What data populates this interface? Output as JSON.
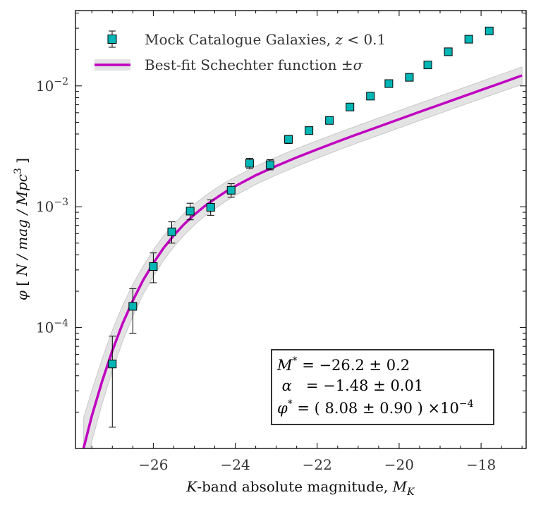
{
  "chart_data": {
    "type": "scatter",
    "xlabel": "K-band absolute magnitude, M_K",
    "ylabel": "φ [ N / mag / Mpc³ ]",
    "xlim": [
      -27.9,
      -16.9
    ],
    "ylim": [
      1e-05,
      0.042
    ],
    "yscale": "log",
    "grid": false,
    "legend_position": "top-left",
    "x_ticks": [
      -26,
      -24,
      -22,
      -20,
      -18
    ],
    "x_tick_labels": [
      "−26",
      "−24",
      "−22",
      "−20",
      "−18"
    ],
    "y_ticks": [
      0.0001,
      0.001,
      0.01
    ],
    "y_tick_labels": [
      {
        "base": "10",
        "exp": "−4"
      },
      {
        "base": "10",
        "exp": "−3"
      },
      {
        "base": "10",
        "exp": "−2"
      }
    ],
    "series": [
      {
        "name": "Mock Catalogue Galaxies, z < 0.1",
        "kind": "errorbar-points",
        "color": "#00b5b5",
        "edge_color": "#000000",
        "x": [
          -27.0,
          -26.5,
          -26.0,
          -25.55,
          -25.1,
          -24.6,
          -24.1,
          -23.65,
          -23.15,
          -22.7,
          -22.2,
          -21.7,
          -21.2,
          -20.7,
          -20.25,
          -19.75,
          -19.3,
          -18.8,
          -18.3,
          -17.8
        ],
        "y": [
          5e-05,
          0.00015,
          0.00032,
          0.00062,
          0.00092,
          0.00099,
          0.00137,
          0.00229,
          0.00223,
          0.00361,
          0.00427,
          0.00518,
          0.00669,
          0.00823,
          0.01045,
          0.01178,
          0.01491,
          0.01916,
          0.02434,
          0.0285
        ],
        "y_err_low": [
          3.5e-05,
          6e-05,
          8.5e-05,
          0.00012,
          0.00014,
          0.00014,
          0.00017,
          0.00022,
          0.00021,
          0.00027,
          0.00029,
          0.00033,
          0.00038,
          0.00042,
          0.00047,
          0.0005,
          0.00056,
          0.00064,
          0.00072,
          0.00079
        ],
        "y_err_high": [
          3.5e-05,
          6e-05,
          9.5e-05,
          0.00013,
          0.00015,
          0.00015,
          0.00018,
          0.00023,
          0.00022,
          0.00028,
          0.0003,
          0.00034,
          0.00039,
          0.00043,
          0.00048,
          0.00051,
          0.00057,
          0.00065,
          0.00073,
          0.0008
        ]
      },
      {
        "name": "Best-fit Schechter function ±σ",
        "kind": "line-with-band",
        "color": "#c000c0",
        "band_color": "#e3e3e3",
        "band_edge_color": "#c8c8c8",
        "x": [
          -27.7,
          -27.5,
          -27.25,
          -27.0,
          -26.75,
          -26.5,
          -26.25,
          -26.0,
          -25.75,
          -25.5,
          -25.25,
          -25.0,
          -24.75,
          -24.5,
          -24.25,
          -24.0,
          -23.5,
          -23.0,
          -22.5,
          -22.0,
          -21.5,
          -21.0,
          -20.5,
          -20.0,
          -19.5,
          -19.0,
          -18.5,
          -18.0,
          -17.5,
          -17.0
        ],
        "y": [
          1.01e-05,
          1.86e-05,
          3.6e-05,
          6.45e-05,
          0.000108,
          0.000167,
          0.000246,
          0.000341,
          0.000455,
          0.00058,
          0.000716,
          0.00086,
          0.00101,
          0.00116,
          0.00132,
          0.00148,
          0.00182,
          0.00217,
          0.00256,
          0.00298,
          0.00346,
          0.004,
          0.0046,
          0.0053,
          0.0061,
          0.007,
          0.00805,
          0.00924,
          0.0106,
          0.0122
        ],
        "y_low": [
          5.6e-06,
          1.15e-05,
          2.35e-05,
          4.4e-05,
          7.7e-05,
          0.000124,
          0.000188,
          0.000266,
          0.00036,
          0.000466,
          0.000582,
          0.000706,
          0.000835,
          0.000965,
          0.0011,
          0.00124,
          0.00153,
          0.00183,
          0.00216,
          0.00252,
          0.00293,
          0.00339,
          0.0039,
          0.00449,
          0.00517,
          0.00593,
          0.00682,
          0.00783,
          0.00898,
          0.0103
        ],
        "y_high": [
          1.8e-05,
          3e-05,
          5.5e-05,
          9.5e-05,
          0.000152,
          0.000227,
          0.000322,
          0.000437,
          0.000575,
          0.00072,
          0.00088,
          0.001045,
          0.00122,
          0.001395,
          0.00158,
          0.001765,
          0.00216,
          0.00257,
          0.00303,
          0.00352,
          0.00408,
          0.00471,
          0.00542,
          0.00624,
          0.00718,
          0.00824,
          0.00947,
          0.01087,
          0.01248,
          0.01435
        ]
      }
    ],
    "annotation": {
      "lines": [
        {
          "sym": "M",
          "sup": "*",
          "text": " = −26.2 ± 0.2"
        },
        {
          "sym": "α",
          "sup": "",
          "text": "   = −1.48 ± 0.01"
        },
        {
          "sym": "φ",
          "sup": "*",
          "text": " = ( 8.08 ± 0.90 ) ×10",
          "tail_sup": "−4"
        }
      ]
    }
  }
}
